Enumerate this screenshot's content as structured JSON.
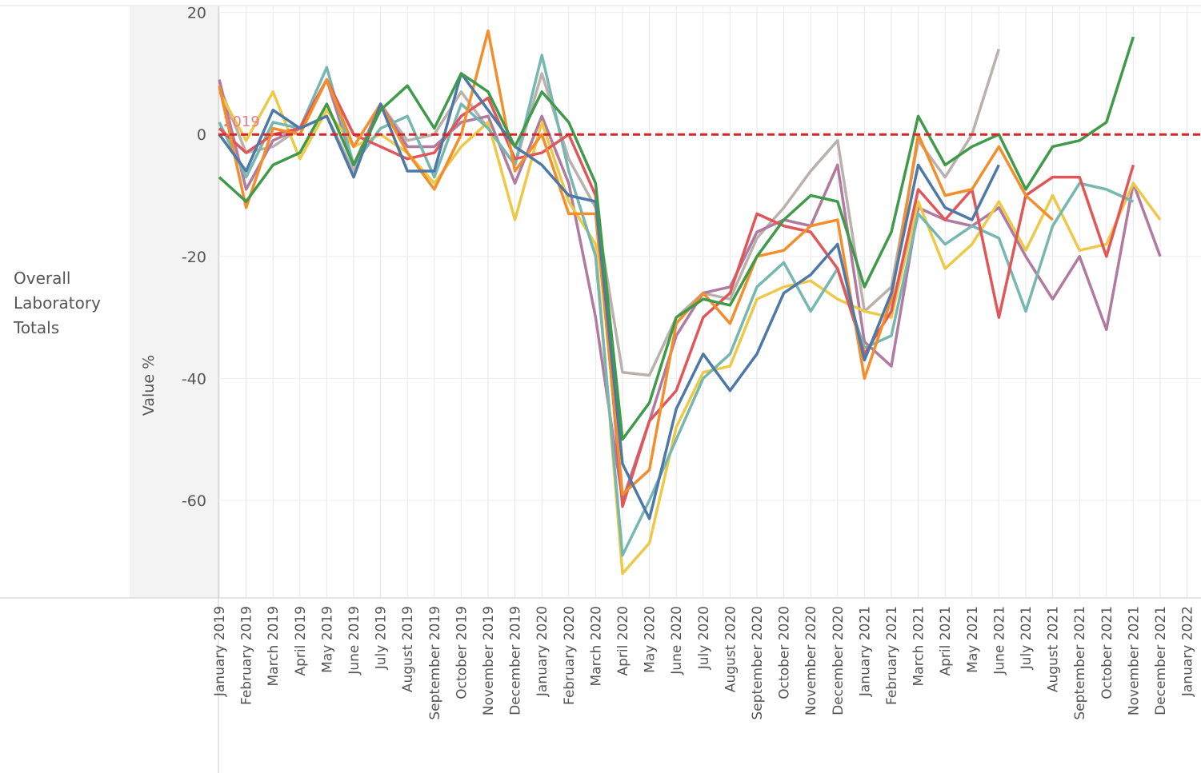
{
  "chart_data": {
    "type": "line",
    "row_header": "Overall Laboratory Totals",
    "y_label": "Value %",
    "categories": [
      "January 2019",
      "February 2019",
      "March 2019",
      "April 2019",
      "May 2019",
      "June 2019",
      "July 2019",
      "August 2019",
      "September 2019",
      "October 2019",
      "November 2019",
      "December 2019",
      "January 2020",
      "February 2020",
      "March 2020",
      "April 2020",
      "May 2020",
      "June 2020",
      "July 2020",
      "August 2020",
      "September 2020",
      "October 2020",
      "November 2020",
      "December 2020",
      "January 2021",
      "February 2021",
      "March 2021",
      "April 2021",
      "May 2021",
      "June 2021",
      "July 2021",
      "August 2021",
      "September 2021",
      "October 2021",
      "November 2021",
      "December 2021",
      "January 2022"
    ],
    "series": [
      {
        "color": "#bab0ac",
        "values": [
          8,
          -3,
          -2,
          1,
          3,
          -6,
          5,
          -1,
          0,
          7,
          1,
          -5,
          10,
          -4,
          -12,
          -39,
          -39.5,
          -30,
          -26,
          -27,
          -17,
          -12,
          -6,
          -1,
          -29,
          -25,
          -1,
          -7,
          0,
          14,
          null,
          null,
          null,
          null,
          null,
          null,
          null
        ]
      },
      {
        "color": "#b07aa1",
        "values": [
          9,
          -9,
          -1,
          1,
          9,
          -5,
          5,
          -2,
          -2,
          2,
          3,
          -8,
          3,
          -8,
          -30,
          -60,
          -47,
          -33,
          -26,
          -25,
          -16,
          -14,
          -15,
          -5,
          -34,
          -38,
          -12,
          -14,
          -15,
          -12,
          -20,
          -27,
          -20,
          -32,
          -8,
          -20,
          null
        ]
      },
      {
        "color": "#edc948",
        "values": [
          7,
          -1,
          7,
          -4,
          4,
          -2,
          0,
          -3,
          -8,
          -2,
          2,
          -14,
          2,
          -11,
          -18,
          -72,
          -67,
          -48,
          -39,
          -38,
          -27,
          -25,
          -24,
          -27,
          -29,
          -30,
          -11,
          -22,
          -18,
          -11,
          -19,
          -10,
          -19,
          -18,
          -8,
          -14,
          null
        ]
      },
      {
        "color": "#76b7b2",
        "values": [
          2,
          -7,
          2,
          1,
          11,
          -5,
          1,
          3,
          -7,
          5,
          1,
          -5,
          13,
          -6,
          -20,
          -69,
          -60,
          -50,
          -40,
          -36,
          -25,
          -21,
          -29,
          -22,
          -35,
          -33,
          -13,
          -18,
          -15,
          -17,
          -29,
          -15,
          -8,
          -9,
          -11,
          null,
          null
        ]
      },
      {
        "color": "#e15759",
        "values": [
          1,
          -3,
          0,
          1,
          9,
          0,
          -2,
          -4,
          -3,
          3,
          6,
          -4,
          -3,
          0,
          -10,
          -61,
          -47,
          -42,
          -30,
          -26,
          -13,
          -15,
          -16,
          -22,
          -36,
          -29,
          -9,
          -14,
          -9,
          -30,
          -10,
          -7,
          -7,
          -20,
          -5,
          null,
          null
        ]
      },
      {
        "color": "#f28e2b",
        "values": [
          8,
          -12,
          1,
          0,
          9,
          -2,
          5,
          -3,
          -9,
          0,
          17,
          -6,
          0,
          -13,
          -13,
          -59,
          -55,
          -31,
          -26,
          -31,
          -20,
          -19,
          -15,
          -14,
          -40,
          -27,
          0,
          -10,
          -9,
          -2,
          -10,
          -14,
          null,
          null,
          null,
          null,
          null
        ]
      },
      {
        "color": "#4e79a7",
        "values": [
          0,
          -6,
          4,
          1,
          3,
          -7,
          5,
          -6,
          -6,
          10,
          4,
          -2,
          -5,
          -10,
          -11,
          -54,
          -63,
          -45,
          -36,
          -42,
          -36,
          -26,
          -23,
          -18,
          -37,
          -26,
          -5,
          -12,
          -14,
          -5,
          null,
          null,
          null,
          null,
          null,
          null,
          null
        ]
      },
      {
        "color": "#3f9a4a",
        "values": [
          -7,
          -11,
          -5,
          -3,
          5,
          -5,
          4,
          8,
          1,
          10,
          7,
          -2,
          7,
          2,
          -8,
          -50,
          -44,
          -30,
          -27,
          -28,
          -20,
          -14,
          -10,
          -11,
          -25,
          -16,
          3,
          -5,
          -2,
          0,
          -9,
          -2,
          -1,
          2,
          16,
          null,
          null
        ]
      }
    ],
    "reference_line": {
      "value": 0,
      "label": "2019",
      "color": "#d62728"
    },
    "ylim": [
      -76,
      21
    ],
    "yticks": [
      -60,
      -40,
      -20,
      0,
      20
    ],
    "grid": true
  }
}
